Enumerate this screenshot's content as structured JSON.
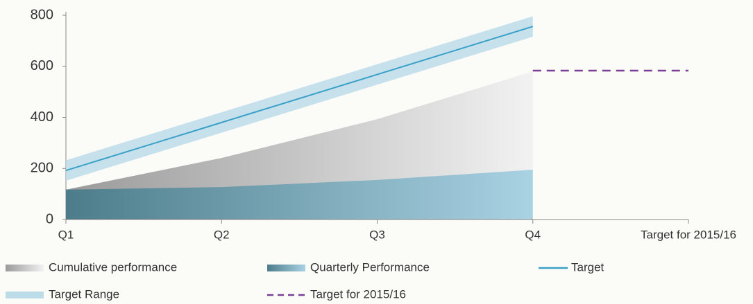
{
  "chart_data": {
    "type": "area",
    "categories": [
      "Q1",
      "Q2",
      "Q3",
      "Q4",
      "Target for 2015/16"
    ],
    "ylim": [
      0,
      800
    ],
    "yticks": [
      0,
      200,
      400,
      600,
      800
    ],
    "grid": false,
    "series": [
      {
        "name": "Cumulative performance",
        "color": "#c8c8c8",
        "kind": "area",
        "values": [
          117,
          241,
          393,
          580,
          null
        ]
      },
      {
        "name": "Quarterly Performance",
        "color": "#7fb3c8",
        "kind": "area",
        "values": [
          117,
          127,
          155,
          195,
          null
        ]
      },
      {
        "name": "Target",
        "color": "#3aa0c8",
        "kind": "line",
        "values": [
          192,
          380,
          568,
          756,
          null
        ]
      },
      {
        "name": "Target Range",
        "color": "#bcdcea",
        "kind": "band",
        "lower": [
          152,
          340,
          528,
          716,
          null
        ],
        "upper": [
          232,
          420,
          608,
          796,
          null
        ]
      },
      {
        "name": "Target for 2015/16",
        "color": "#7b3f98",
        "kind": "dashed",
        "values": [
          null,
          null,
          null,
          583,
          583
        ]
      }
    ]
  }
}
